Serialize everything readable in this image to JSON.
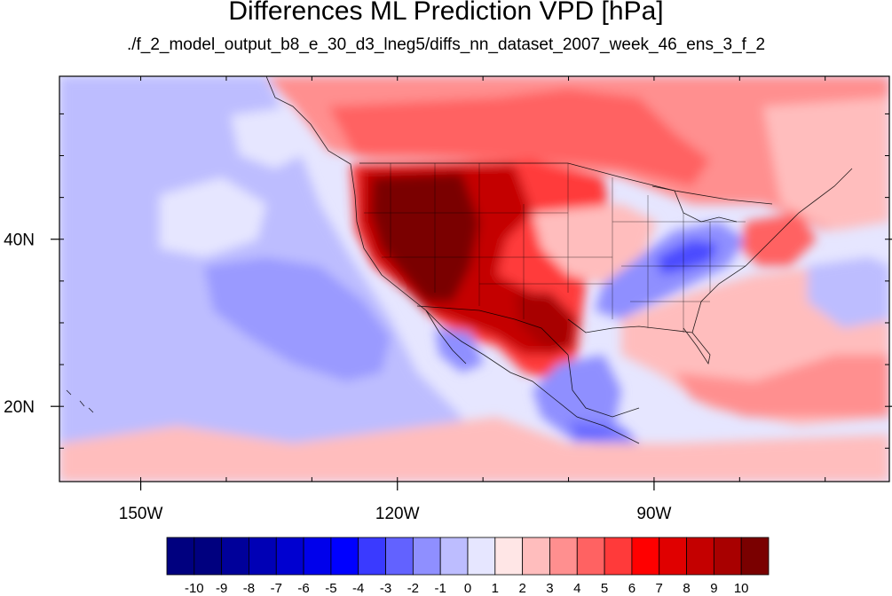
{
  "title": "Differences ML Prediction VPD [hPa]",
  "subtitle": "./f_2_model_output_b8_e_30_d3_lneg5/diffs_nn_dataset_2007_week_46_ens_3_f_2",
  "map": {
    "region": "North America and eastern Pacific",
    "lon_range": [
      -159.5,
      -62.5
    ],
    "lat_range": [
      11,
      59.5
    ],
    "x_ticks": [
      {
        "lon": -150,
        "label": "150W"
      },
      {
        "lon": -120,
        "label": "120W"
      },
      {
        "lon": -90,
        "label": "90W"
      }
    ],
    "y_ticks": [
      {
        "lat": 40,
        "label": "40N"
      },
      {
        "lat": 20,
        "label": "20N"
      }
    ]
  },
  "colorbar": {
    "labels": [
      "-10",
      "-9",
      "-8",
      "-7",
      "-6",
      "-5",
      "-4",
      "-3",
      "-2",
      "-1",
      "0",
      "1",
      "2",
      "3",
      "4",
      "5",
      "6",
      "7",
      "8",
      "9",
      "10"
    ],
    "colors": [
      "#00007f",
      "#00009a",
      "#0000b5",
      "#0000d0",
      "#0000eb",
      "#0000ff",
      "#3a3aff",
      "#6262ff",
      "#8f8fff",
      "#bdbdff",
      "#e6e6ff",
      "#ffe6e6",
      "#ffbdbd",
      "#ff8f8f",
      "#ff6262",
      "#ff3a3a",
      "#ff0000",
      "#e00000",
      "#c40000",
      "#a80000",
      "#7a0000"
    ]
  }
}
